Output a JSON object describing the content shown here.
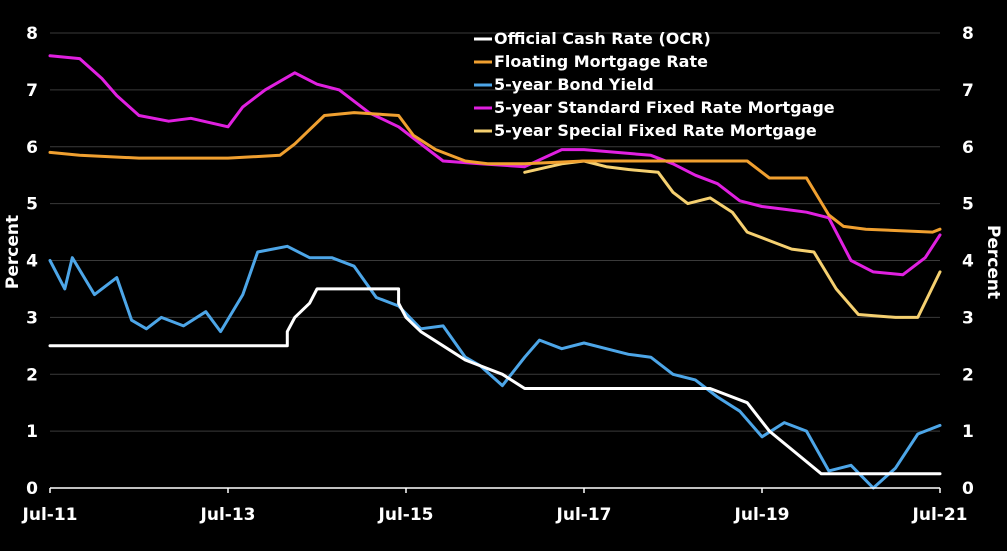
{
  "chart_data": {
    "type": "line",
    "ylabel_left": "Percent",
    "ylabel_right": "Percent",
    "ylim": [
      0,
      8
    ],
    "y_ticks": [
      "0",
      "1",
      "2",
      "3",
      "4",
      "5",
      "6",
      "7",
      "8"
    ],
    "x_ticks": [
      "Jul-11",
      "Jul-13",
      "Jul-15",
      "Jul-17",
      "Jul-19",
      "Jul-21"
    ],
    "xlim": [
      "2011-07",
      "2021-07"
    ],
    "grid": "horizontal",
    "legend_position": "top-right",
    "background": "#000000",
    "series": [
      {
        "name": "Official Cash Rate (OCR)",
        "color": "#ffffff",
        "points": [
          [
            "2011-07",
            2.5
          ],
          [
            "2014-03",
            2.5
          ],
          [
            "2014-03",
            2.75
          ],
          [
            "2014-04",
            3.0
          ],
          [
            "2014-06",
            3.25
          ],
          [
            "2014-07",
            3.5
          ],
          [
            "2015-06",
            3.5
          ],
          [
            "2015-06",
            3.25
          ],
          [
            "2015-07",
            3.0
          ],
          [
            "2015-09",
            2.75
          ],
          [
            "2015-12",
            2.5
          ],
          [
            "2016-03",
            2.25
          ],
          [
            "2016-08",
            2.0
          ],
          [
            "2016-11",
            1.75
          ],
          [
            "2018-12",
            1.75
          ],
          [
            "2019-05",
            1.5
          ],
          [
            "2019-08",
            1.0
          ],
          [
            "2020-03",
            0.25
          ],
          [
            "2021-07",
            0.25
          ]
        ]
      },
      {
        "name": "Floating Mortgage Rate",
        "color": "#f0a030",
        "points": [
          [
            "2011-07",
            5.9
          ],
          [
            "2011-11",
            5.85
          ],
          [
            "2012-07",
            5.8
          ],
          [
            "2013-07",
            5.8
          ],
          [
            "2014-02",
            5.85
          ],
          [
            "2014-04",
            6.05
          ],
          [
            "2014-06",
            6.3
          ],
          [
            "2014-08",
            6.55
          ],
          [
            "2014-12",
            6.6
          ],
          [
            "2015-06",
            6.55
          ],
          [
            "2015-08",
            6.2
          ],
          [
            "2015-11",
            5.95
          ],
          [
            "2016-03",
            5.75
          ],
          [
            "2016-06",
            5.7
          ],
          [
            "2016-11",
            5.7
          ],
          [
            "2017-07",
            5.75
          ],
          [
            "2018-07",
            5.75
          ],
          [
            "2019-05",
            5.75
          ],
          [
            "2019-08",
            5.45
          ],
          [
            "2020-01",
            5.45
          ],
          [
            "2020-04",
            4.8
          ],
          [
            "2020-06",
            4.6
          ],
          [
            "2020-09",
            4.55
          ],
          [
            "2021-06",
            4.5
          ],
          [
            "2021-07",
            4.55
          ]
        ]
      },
      {
        "name": "5-year Bond Yield",
        "color": "#4da6e8",
        "points": [
          [
            "2011-07",
            4.0
          ],
          [
            "2011-09",
            3.5
          ],
          [
            "2011-10",
            4.05
          ],
          [
            "2012-01",
            3.4
          ],
          [
            "2012-04",
            3.7
          ],
          [
            "2012-06",
            2.95
          ],
          [
            "2012-08",
            2.8
          ],
          [
            "2012-10",
            3.0
          ],
          [
            "2013-01",
            2.85
          ],
          [
            "2013-04",
            3.1
          ],
          [
            "2013-06",
            2.75
          ],
          [
            "2013-09",
            3.4
          ],
          [
            "2013-11",
            4.15
          ],
          [
            "2014-03",
            4.25
          ],
          [
            "2014-06",
            4.05
          ],
          [
            "2014-09",
            4.05
          ],
          [
            "2014-12",
            3.9
          ],
          [
            "2015-03",
            3.35
          ],
          [
            "2015-06",
            3.2
          ],
          [
            "2015-09",
            2.8
          ],
          [
            "2015-12",
            2.85
          ],
          [
            "2016-03",
            2.3
          ],
          [
            "2016-05",
            2.15
          ],
          [
            "2016-08",
            1.8
          ],
          [
            "2016-11",
            2.3
          ],
          [
            "2017-01",
            2.6
          ],
          [
            "2017-04",
            2.45
          ],
          [
            "2017-07",
            2.55
          ],
          [
            "2017-10",
            2.45
          ],
          [
            "2018-01",
            2.35
          ],
          [
            "2018-04",
            2.3
          ],
          [
            "2018-07",
            2.0
          ],
          [
            "2018-10",
            1.9
          ],
          [
            "2019-01",
            1.6
          ],
          [
            "2019-04",
            1.35
          ],
          [
            "2019-07",
            0.9
          ],
          [
            "2019-10",
            1.15
          ],
          [
            "2020-01",
            1.0
          ],
          [
            "2020-04",
            0.3
          ],
          [
            "2020-07",
            0.4
          ],
          [
            "2020-10",
            0.0
          ],
          [
            "2021-01",
            0.35
          ],
          [
            "2021-04",
            0.95
          ],
          [
            "2021-07",
            1.1
          ]
        ]
      },
      {
        "name": "5-year Standard Fixed Rate Mortgage",
        "color": "#e020e0",
        "points": [
          [
            "2011-07",
            7.6
          ],
          [
            "2011-11",
            7.55
          ],
          [
            "2012-02",
            7.2
          ],
          [
            "2012-04",
            6.9
          ],
          [
            "2012-07",
            6.55
          ],
          [
            "2012-11",
            6.45
          ],
          [
            "2013-02",
            6.5
          ],
          [
            "2013-07",
            6.35
          ],
          [
            "2013-09",
            6.7
          ],
          [
            "2013-12",
            7.0
          ],
          [
            "2014-04",
            7.3
          ],
          [
            "2014-07",
            7.1
          ],
          [
            "2014-10",
            7.0
          ],
          [
            "2015-02",
            6.6
          ],
          [
            "2015-06",
            6.35
          ],
          [
            "2015-09",
            6.05
          ],
          [
            "2015-12",
            5.75
          ],
          [
            "2016-05",
            5.7
          ],
          [
            "2016-11",
            5.65
          ],
          [
            "2017-04",
            5.95
          ],
          [
            "2017-07",
            5.95
          ],
          [
            "2018-04",
            5.85
          ],
          [
            "2018-07",
            5.7
          ],
          [
            "2018-10",
            5.5
          ],
          [
            "2019-01",
            5.35
          ],
          [
            "2019-04",
            5.05
          ],
          [
            "2019-07",
            4.95
          ],
          [
            "2019-10",
            4.9
          ],
          [
            "2020-01",
            4.85
          ],
          [
            "2020-04",
            4.75
          ],
          [
            "2020-07",
            4.0
          ],
          [
            "2020-10",
            3.8
          ],
          [
            "2021-02",
            3.75
          ],
          [
            "2021-05",
            4.05
          ],
          [
            "2021-07",
            4.45
          ]
        ]
      },
      {
        "name": "5-year Special Fixed Rate Mortgage",
        "color": "#f5d070",
        "points": [
          [
            "2016-11",
            5.55
          ],
          [
            "2017-04",
            5.7
          ],
          [
            "2017-07",
            5.75
          ],
          [
            "2017-10",
            5.65
          ],
          [
            "2018-01",
            5.6
          ],
          [
            "2018-05",
            5.55
          ],
          [
            "2018-07",
            5.2
          ],
          [
            "2018-09",
            5.0
          ],
          [
            "2018-12",
            5.1
          ],
          [
            "2019-03",
            4.85
          ],
          [
            "2019-05",
            4.5
          ],
          [
            "2019-08",
            4.35
          ],
          [
            "2019-11",
            4.2
          ],
          [
            "2020-02",
            4.15
          ],
          [
            "2020-05",
            3.5
          ],
          [
            "2020-08",
            3.05
          ],
          [
            "2021-01",
            3.0
          ],
          [
            "2021-04",
            3.0
          ],
          [
            "2021-07",
            3.8
          ]
        ]
      }
    ]
  }
}
